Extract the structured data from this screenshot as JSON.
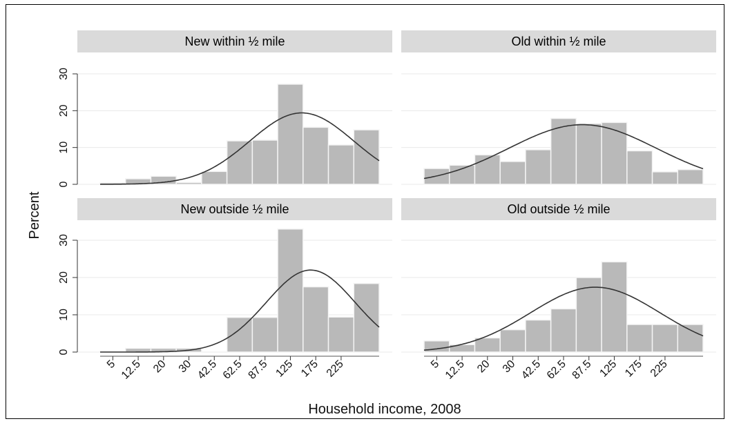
{
  "chart_data": {
    "type": "bar",
    "xlabel": "Household income, 2008",
    "ylabel": "Percent",
    "y_ticks": [
      "0",
      "10",
      "20",
      "30"
    ],
    "ylim": [
      0,
      35
    ],
    "x_tick_labels": [
      "5",
      "12.5",
      "20",
      "30",
      "42.5",
      "62.5",
      "87.5",
      "125",
      "175",
      "225"
    ],
    "panels": [
      {
        "title": "New within ½ mile",
        "bars": [
          0.4,
          1.5,
          2.2,
          0.5,
          3.5,
          11.8,
          12.0,
          27.2,
          15.5,
          10.7,
          14.8
        ],
        "normal_curve": {
          "peak": 19.4,
          "center_bin": 7.95,
          "sd_bins": 2.05
        }
      },
      {
        "title": "Old within ½ mile",
        "bars": [
          4.3,
          5.2,
          8.0,
          6.2,
          9.4,
          17.9,
          16.5,
          16.8,
          9.1,
          3.4,
          4.0
        ],
        "normal_curve": {
          "peak": 16.2,
          "center_bin": 6.25,
          "sd_bins": 2.9
        }
      },
      {
        "title": "New outside ½ mile",
        "bars": [
          0.2,
          1.0,
          1.0,
          1.0,
          0.0,
          9.3,
          9.3,
          33.0,
          17.5,
          9.4,
          18.4
        ],
        "normal_curve": {
          "peak": 22.0,
          "center_bin": 8.3,
          "sd_bins": 1.75
        }
      },
      {
        "title": "Old outside ½ mile",
        "bars": [
          3.0,
          2.0,
          3.8,
          6.0,
          8.6,
          11.6,
          20.0,
          24.2,
          7.4,
          7.4,
          7.4
        ],
        "normal_curve": {
          "peak": 17.4,
          "center_bin": 6.75,
          "sd_bins": 2.55
        }
      }
    ],
    "colors": {
      "bar": "#b9b9b9",
      "bar_edge": "#f4f4f4",
      "curve": "#333333",
      "strip": "#dadada",
      "grid": "#e8e8e8"
    },
    "grid": true
  }
}
